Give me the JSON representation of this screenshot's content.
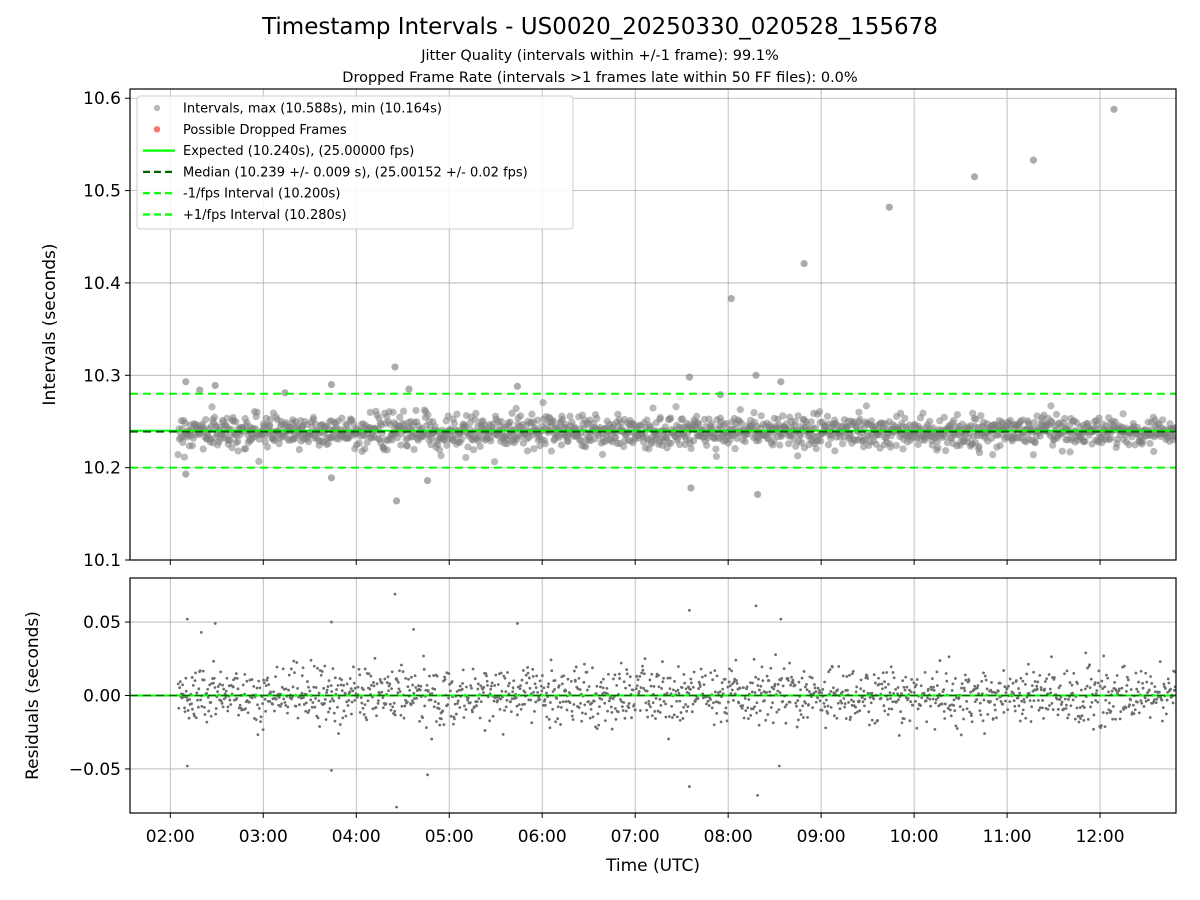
{
  "title": "Timestamp Intervals - US0020_20250330_020528_155678",
  "subtitle1": "Jitter Quality (intervals within +/-1 frame): 99.1%",
  "subtitle2": "Dropped Frame Rate (intervals >1 frames late within 50 FF files): 0.0%",
  "colors": {
    "points": "#808080",
    "dropped": "#ff0000",
    "expected": "#00ff00",
    "median": "#006400",
    "bounds": "#00ff00",
    "grid": "#b0b0b0"
  },
  "legend": {
    "placement": "upper-left",
    "entries": [
      {
        "label": "Intervals, max (10.588s), min (10.164s)",
        "kind": "marker",
        "color": "#808080"
      },
      {
        "label": "Possible Dropped Frames",
        "kind": "marker",
        "color": "#ff0000"
      },
      {
        "label": "Expected (10.240s), (25.00000 fps)",
        "kind": "solid",
        "color": "#00ff00"
      },
      {
        "label": "Median (10.239 +/- 0.009 s), (25.00152 +/- 0.02 fps)",
        "kind": "dashed",
        "color": "#006400"
      },
      {
        "label": "-1/fps Interval (10.200s)",
        "kind": "dashed",
        "color": "#00ff00"
      },
      {
        "label": "+1/fps Interval (10.280s)",
        "kind": "dashed",
        "color": "#00ff00"
      }
    ]
  },
  "chart_data": [
    {
      "type": "scatter",
      "ylabel": "Intervals (seconds)",
      "xlim": [
        "01:34",
        "12:49"
      ],
      "ylim": [
        10.1,
        10.61
      ],
      "yticks": [
        10.1,
        10.2,
        10.3,
        10.4,
        10.5,
        10.6
      ],
      "ytick_labels": [
        "10.1",
        "10.2",
        "10.3",
        "10.4",
        "10.5",
        "10.6"
      ],
      "grid": true,
      "lines": [
        {
          "name": "Expected",
          "y": 10.24,
          "style": "solid"
        },
        {
          "name": "Median",
          "y": 10.239,
          "style": "dashed"
        },
        {
          "name": "-1/fps Interval",
          "y": 10.2,
          "style": "dashed"
        },
        {
          "name": "+1/fps Interval",
          "y": 10.28,
          "style": "dashed"
        }
      ],
      "notable_points": [
        {
          "x": "02:10",
          "y": 10.293
        },
        {
          "x": "02:10",
          "y": 10.193
        },
        {
          "x": "02:19",
          "y": 10.284
        },
        {
          "x": "02:29",
          "y": 10.289
        },
        {
          "x": "03:14",
          "y": 10.281
        },
        {
          "x": "03:44",
          "y": 10.29
        },
        {
          "x": "03:44",
          "y": 10.189
        },
        {
          "x": "04:25",
          "y": 10.309
        },
        {
          "x": "04:26",
          "y": 10.164
        },
        {
          "x": "04:34",
          "y": 10.285
        },
        {
          "x": "04:46",
          "y": 10.186
        },
        {
          "x": "05:44",
          "y": 10.288
        },
        {
          "x": "07:35",
          "y": 10.298
        },
        {
          "x": "07:36",
          "y": 10.178
        },
        {
          "x": "07:55",
          "y": 10.279
        },
        {
          "x": "08:02",
          "y": 10.383
        },
        {
          "x": "08:18",
          "y": 10.3
        },
        {
          "x": "08:19",
          "y": 10.171
        },
        {
          "x": "08:34",
          "y": 10.293
        },
        {
          "x": "08:49",
          "y": 10.421
        },
        {
          "x": "09:44",
          "y": 10.482
        },
        {
          "x": "10:39",
          "y": 10.515
        },
        {
          "x": "11:17",
          "y": 10.533
        },
        {
          "x": "12:09",
          "y": 10.588
        }
      ],
      "bulk": {
        "x_start": "02:05",
        "x_end": "12:49",
        "center": 10.239,
        "spread_sd": 0.009,
        "count": 1600
      }
    },
    {
      "type": "scatter",
      "ylabel": "Residuals (seconds)",
      "xlabel": "Time (UTC)",
      "xlim": [
        "01:34",
        "12:49"
      ],
      "ylim": [
        -0.08,
        0.08
      ],
      "yticks": [
        -0.05,
        0,
        0.05
      ],
      "ytick_labels": [
        "−0.05",
        "0.00",
        "0.05"
      ],
      "xticks": [
        "02:00",
        "03:00",
        "04:00",
        "05:00",
        "06:00",
        "07:00",
        "08:00",
        "09:00",
        "10:00",
        "11:00",
        "12:00"
      ],
      "grid": true,
      "lines": [
        {
          "name": "zero",
          "y": 0
        }
      ],
      "notable_points": [
        {
          "x": "02:11",
          "y": 0.052
        },
        {
          "x": "02:11",
          "y": -0.048
        },
        {
          "x": "02:29",
          "y": 0.049
        },
        {
          "x": "02:20",
          "y": 0.043
        },
        {
          "x": "03:44",
          "y": 0.05
        },
        {
          "x": "03:44",
          "y": -0.051
        },
        {
          "x": "04:25",
          "y": 0.069
        },
        {
          "x": "04:26",
          "y": -0.076
        },
        {
          "x": "04:37",
          "y": 0.045
        },
        {
          "x": "04:46",
          "y": -0.054
        },
        {
          "x": "05:44",
          "y": 0.049
        },
        {
          "x": "07:35",
          "y": 0.058
        },
        {
          "x": "07:35",
          "y": -0.062
        },
        {
          "x": "08:18",
          "y": 0.061
        },
        {
          "x": "08:19",
          "y": -0.068
        },
        {
          "x": "08:34",
          "y": 0.052
        },
        {
          "x": "08:33",
          "y": -0.048
        }
      ],
      "bulk": {
        "x_start": "02:05",
        "x_end": "12:49",
        "center": 0,
        "spread_sd": 0.01,
        "count": 1600
      }
    }
  ]
}
